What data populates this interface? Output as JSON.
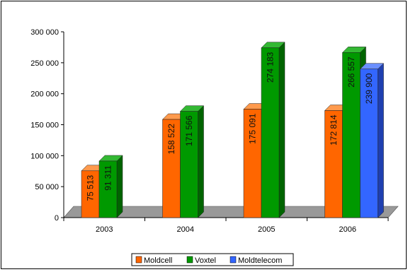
{
  "chart_data": {
    "type": "bar",
    "title": "",
    "xlabel": "",
    "ylabel": "",
    "categories": [
      "2003",
      "2004",
      "2005",
      "2006"
    ],
    "series": [
      {
        "name": "Moldcell",
        "color": "#ff6600",
        "side": "#b84a00",
        "top": "#ff9a4d",
        "values": [
          75513,
          158522,
          175091,
          172814
        ],
        "labels": [
          "75 513",
          "158 522",
          "175 091",
          "172 814"
        ]
      },
      {
        "name": "Voxtel",
        "color": "#009900",
        "side": "#006400",
        "top": "#33b833",
        "values": [
          91311,
          171566,
          274183,
          266557
        ],
        "labels": [
          "91 311",
          "171 566",
          "274 183",
          "266 557"
        ]
      },
      {
        "name": "Moldtelecom",
        "color": "#3366ff",
        "side": "#1f3fb0",
        "top": "#6b8fff",
        "values": [
          null,
          null,
          null,
          239900
        ],
        "labels": [
          null,
          null,
          null,
          "239 900"
        ]
      }
    ],
    "ylim": [
      0,
      300000
    ],
    "yticks": [
      0,
      50000,
      100000,
      150000,
      200000,
      250000,
      300000
    ],
    "ytick_labels": [
      "0",
      "50 000",
      "100 000",
      "150 000",
      "200 000",
      "250 000",
      "300 000"
    ],
    "legend_position": "bottom",
    "floor_color": "#999999",
    "grid": false
  }
}
